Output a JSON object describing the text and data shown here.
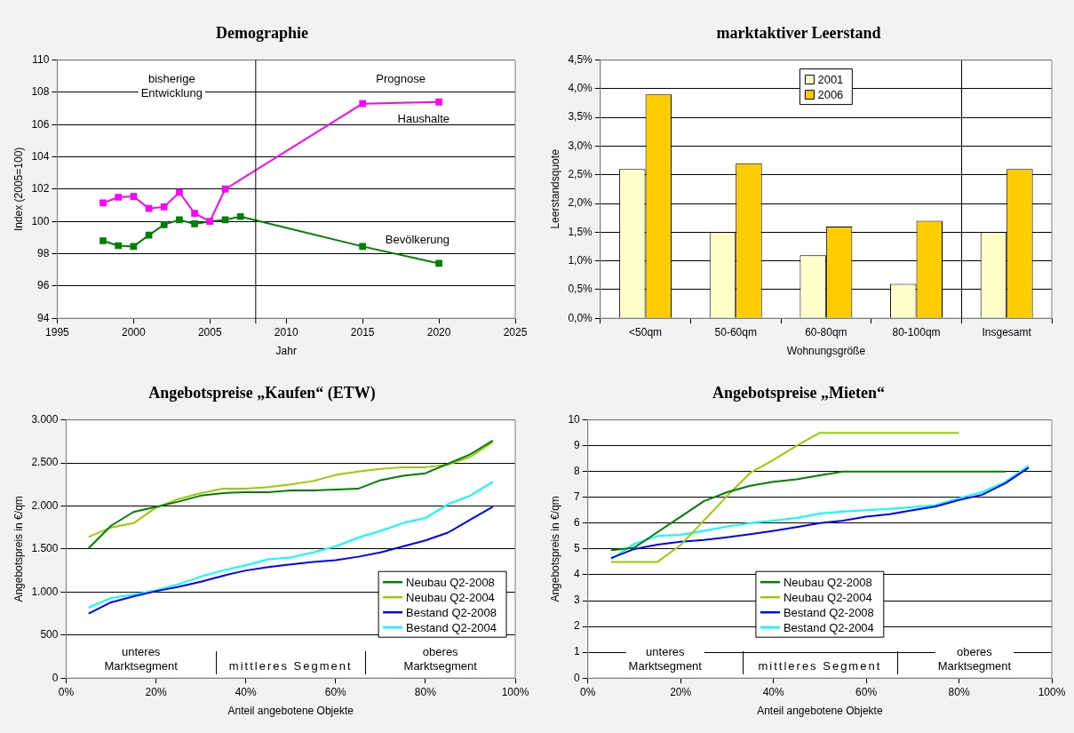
{
  "chart_data": [
    {
      "type": "line",
      "title": "Demographie",
      "xlabel": "Jahr",
      "ylabel": "Index (2005=100)",
      "xlim": [
        1995,
        2025
      ],
      "xticks": [
        1995,
        2000,
        2005,
        2010,
        2015,
        2020,
        2025
      ],
      "ylim": [
        94,
        110
      ],
      "yticks": [
        94,
        96,
        98,
        100,
        102,
        104,
        106,
        108,
        110
      ],
      "grid": "y",
      "marker": "square",
      "legend": false,
      "series": [
        {
          "name": "Haushalte",
          "color": "#ff00ff",
          "x": [
            1998,
            1999,
            2000,
            2001,
            2002,
            2003,
            2004,
            2005,
            2006,
            2015,
            2020
          ],
          "values": [
            101.15,
            101.5,
            101.55,
            100.8,
            100.9,
            101.8,
            100.5,
            100.0,
            102.0,
            107.3,
            107.4
          ]
        },
        {
          "name": "Bevölkerung",
          "color": "#008000",
          "x": [
            1998,
            1999,
            2000,
            2001,
            2002,
            2003,
            2004,
            2005,
            2006,
            2007,
            2015,
            2020
          ],
          "values": [
            98.8,
            98.5,
            98.45,
            99.15,
            99.8,
            100.1,
            99.85,
            100.0,
            100.1,
            100.3,
            98.45,
            97.4
          ]
        }
      ],
      "ref_lines": [
        {
          "axis": "x",
          "value": 2008,
          "color": "#000000"
        }
      ],
      "annotations": [
        "bisherige\nEntwicklung",
        "Prognose"
      ]
    },
    {
      "type": "bar",
      "title": "marktaktiver Leerstand",
      "xlabel": "Wohnungsgröße",
      "ylabel": "Leerstandsquote",
      "categories": [
        "<50qm",
        "50-60qm",
        "60-80qm",
        "80-100qm",
        "Insgesamt"
      ],
      "ylim": [
        0,
        4.5
      ],
      "yticks": [
        {
          "value": 0,
          "label": "0,0%"
        },
        {
          "value": 0.5,
          "label": "0,5%"
        },
        {
          "value": 1,
          "label": "1,0%"
        },
        {
          "value": 1.5,
          "label": "1,5%"
        },
        {
          "value": 2,
          "label": "2,0%"
        },
        {
          "value": 2.5,
          "label": "2,5%"
        },
        {
          "value": 3,
          "label": "3,0%"
        },
        {
          "value": 3.5,
          "label": "3,5%"
        },
        {
          "value": 4,
          "label": "4,0%"
        },
        {
          "value": 4.5,
          "label": "4,5%"
        }
      ],
      "grid": "y",
      "legend": "top",
      "series": [
        {
          "name": "2001",
          "color": "#ffffcc",
          "values": [
            2.6,
            1.5,
            1.1,
            0.6,
            1.5
          ]
        },
        {
          "name": "2006",
          "color": "#ffcc00",
          "values": [
            3.9,
            2.7,
            1.6,
            1.7,
            2.6
          ]
        }
      ]
    },
    {
      "type": "line",
      "title": "Angebotspreise „Kaufen“ (ETW)",
      "xlabel": "Anteil angebotene Objekte",
      "ylabel": "Angebotspreis in €/qm",
      "x": [
        5,
        10,
        15,
        20,
        25,
        30,
        35,
        40,
        45,
        50,
        55,
        60,
        65,
        70,
        75,
        80,
        85,
        90,
        95
      ],
      "xlim": [
        0,
        100
      ],
      "xticks": [
        {
          "value": 0,
          "label": "0%"
        },
        {
          "value": 20,
          "label": "20%"
        },
        {
          "value": 40,
          "label": "40%"
        },
        {
          "value": 60,
          "label": "60%"
        },
        {
          "value": 80,
          "label": "80%"
        },
        {
          "value": 100,
          "label": "100%"
        }
      ],
      "ylim": [
        0,
        3000
      ],
      "yticks": [
        0,
        500,
        {
          "value": 1000,
          "label": "1.000"
        },
        {
          "value": 1500,
          "label": "1.500"
        },
        {
          "value": 2000,
          "label": "2.000"
        },
        {
          "value": 2500,
          "label": "2.500"
        },
        {
          "value": 3000,
          "label": "3.000"
        }
      ],
      "grid": "y",
      "legend": "bottom right",
      "series": [
        {
          "name": "Neubau Q2-2008",
          "color": "#008000",
          "values": [
            1510,
            1770,
            1930,
            1990,
            2050,
            2120,
            2150,
            2160,
            2160,
            2180,
            2180,
            2190,
            2200,
            2300,
            2350,
            2380,
            2490,
            2600,
            2760
          ]
        },
        {
          "name": "Neubau Q2-2004",
          "color": "#99cc00",
          "values": [
            1640,
            1750,
            1800,
            1980,
            2080,
            2150,
            2200,
            2200,
            2220,
            2250,
            2290,
            2360,
            2400,
            2430,
            2450,
            2450,
            2480,
            2570,
            2740
          ]
        },
        {
          "name": "Bestand Q2-2008",
          "color": "#0000ff",
          "values": [
            750,
            880,
            950,
            1010,
            1060,
            1120,
            1190,
            1250,
            1290,
            1320,
            1350,
            1370,
            1410,
            1460,
            1530,
            1600,
            1690,
            1840,
            1990
          ]
        },
        {
          "name": "Bestand Q2-2004",
          "color": "#00ffff",
          "values": [
            820,
            930,
            970,
            1020,
            1090,
            1180,
            1250,
            1310,
            1380,
            1400,
            1460,
            1530,
            1630,
            1710,
            1800,
            1860,
            2020,
            2120,
            2280
          ]
        }
      ],
      "annotations": [
        "unteres\nMarktsegment",
        "mittleres Segment",
        "oberes\nMarktsegment"
      ]
    },
    {
      "type": "line",
      "title": "Angebotspreise „Mieten“",
      "xlabel": "Anteil angebotene Objekte",
      "ylabel": "Angebotspreis in €/qm",
      "x": [
        5,
        10,
        15,
        20,
        25,
        30,
        35,
        40,
        45,
        50,
        55,
        60,
        65,
        70,
        75,
        80,
        85,
        90,
        95
      ],
      "xlim": [
        0,
        100
      ],
      "xticks": [
        {
          "value": 0,
          "label": "0%"
        },
        {
          "value": 20,
          "label": "20%"
        },
        {
          "value": 40,
          "label": "40%"
        },
        {
          "value": 60,
          "label": "60%"
        },
        {
          "value": 80,
          "label": "80%"
        },
        {
          "value": 100,
          "label": "100%"
        }
      ],
      "ylim": [
        0,
        10
      ],
      "yticks": [
        0,
        1,
        2,
        3,
        4,
        5,
        6,
        7,
        8,
        9,
        10
      ],
      "grid": "y",
      "legend": "bottom",
      "series": [
        {
          "name": "Neubau Q2-2008",
          "color": "#008000",
          "values": [
            4.95,
            5.05,
            5.65,
            6.25,
            6.85,
            7.2,
            7.45,
            7.6,
            7.7,
            7.85,
            8.0,
            8.0,
            8.0,
            8.0,
            8.0,
            8.0,
            8.0,
            8.0,
            null
          ]
        },
        {
          "name": "Neubau Q2-2004",
          "color": "#99cc00",
          "values": [
            4.5,
            4.5,
            4.5,
            5.15,
            6.1,
            7.05,
            7.95,
            8.45,
            9.0,
            9.5,
            9.5,
            9.5,
            9.5,
            9.5,
            9.5,
            9.5,
            null,
            null,
            null
          ]
        },
        {
          "name": "Bestand Q2-2008",
          "color": "#0000ff",
          "values": [
            4.65,
            5.0,
            5.17,
            5.28,
            5.35,
            5.45,
            5.57,
            5.7,
            5.85,
            6.0,
            6.1,
            6.25,
            6.35,
            6.5,
            6.65,
            6.9,
            7.1,
            7.55,
            8.15
          ]
        },
        {
          "name": "Bestand Q2-2004",
          "color": "#00ffff",
          "values": [
            4.6,
            5.2,
            5.5,
            5.55,
            5.7,
            5.87,
            6.0,
            6.1,
            6.2,
            6.37,
            6.45,
            6.5,
            6.55,
            6.62,
            6.7,
            6.97,
            7.2,
            7.6,
            8.22
          ]
        }
      ],
      "annotations": [
        "unteres\nMarktsegment",
        "mittleres Segment",
        "oberes\nMarktsegment"
      ]
    }
  ]
}
